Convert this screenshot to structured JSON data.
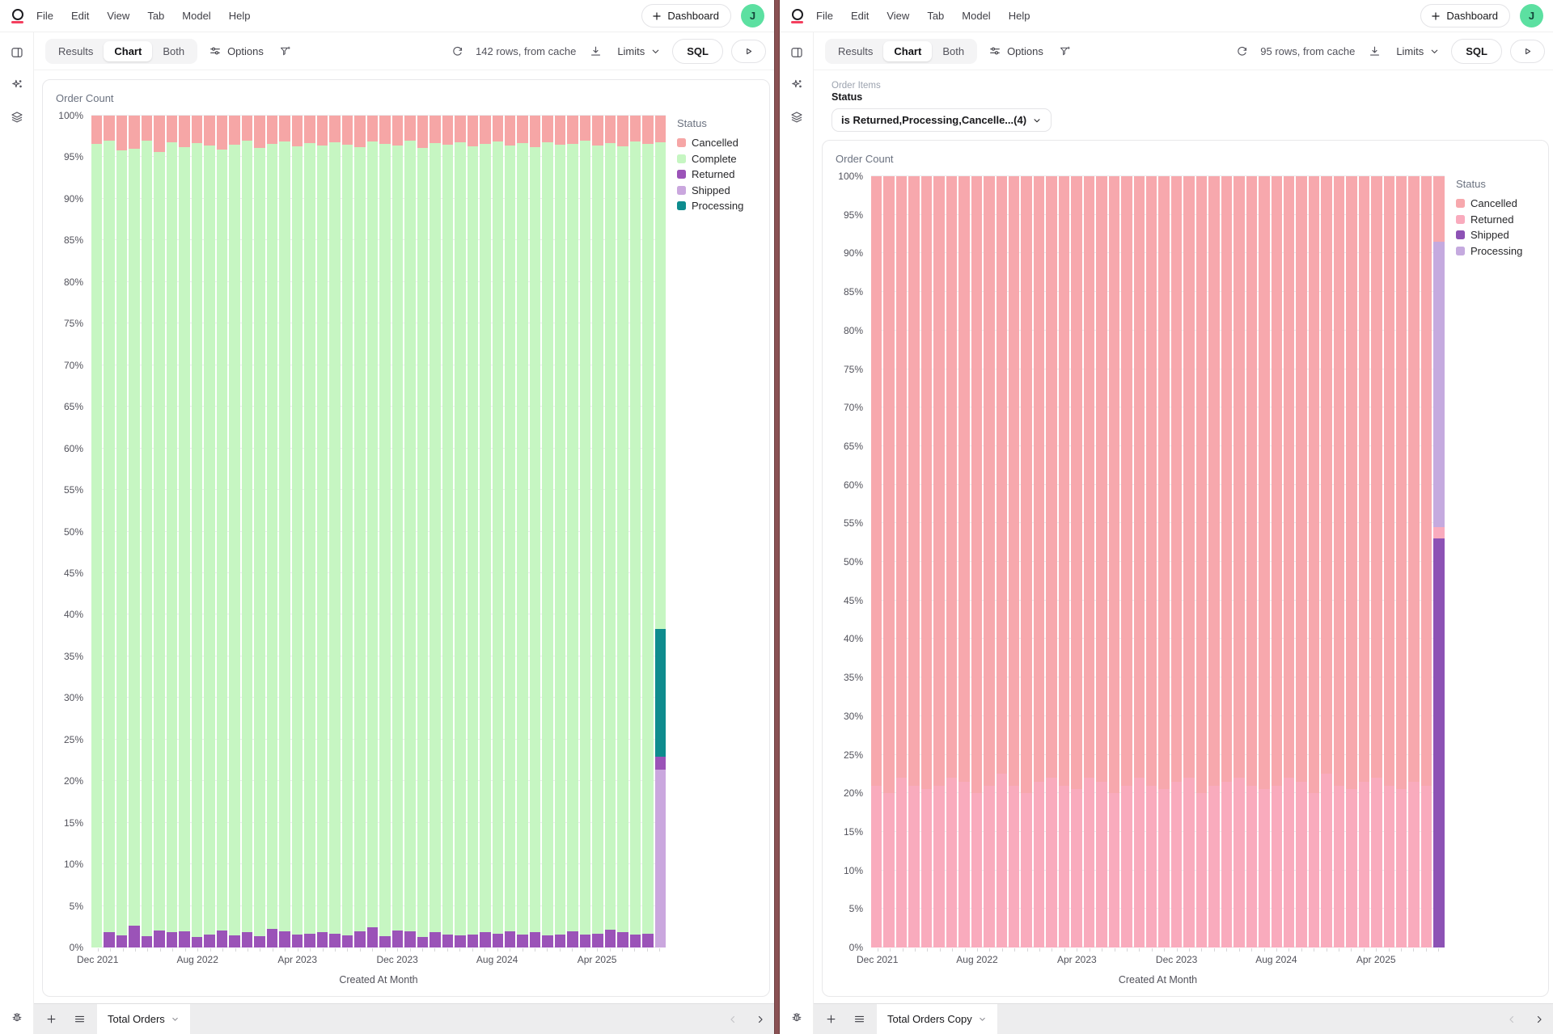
{
  "app": {
    "divider_color": "#8a5153",
    "panes": [
      {
        "menu": [
          "File",
          "Edit",
          "View",
          "Tab",
          "Model",
          "Help"
        ],
        "dashboard_label": "Dashboard",
        "avatar_initial": "J",
        "view_tabs": [
          "Results",
          "Chart",
          "Both"
        ],
        "active_view_tab": "Chart",
        "options_label": "Options",
        "rows_status": "142 rows, from cache",
        "limits_label": "Limits",
        "sql_label": "SQL",
        "bottom_tab": "Total Orders"
      },
      {
        "menu": [
          "File",
          "Edit",
          "View",
          "Tab",
          "Model",
          "Help"
        ],
        "dashboard_label": "Dashboard",
        "avatar_initial": "J",
        "view_tabs": [
          "Results",
          "Chart",
          "Both"
        ],
        "active_view_tab": "Chart",
        "options_label": "Options",
        "rows_status": "95 rows, from cache",
        "limits_label": "Limits",
        "sql_label": "SQL",
        "bottom_tab": "Total Orders Copy",
        "filter": {
          "table": "Order Items",
          "column": "Status",
          "value": "is Returned,Processing,Cancelle...(4)"
        }
      }
    ]
  },
  "chart_data": [
    {
      "type": "bar",
      "variant": "stacked-percent",
      "title": "Order Count",
      "xlabel": "Created At Month",
      "ylim": [
        0,
        100
      ],
      "y_tick_step": 5,
      "y_tick_suffix": "%",
      "n_bars": 46,
      "grid": true,
      "x_tick_labels": [
        {
          "i": 0,
          "label": "Dec 2021"
        },
        {
          "i": 8,
          "label": "Aug 2022"
        },
        {
          "i": 16,
          "label": "Apr 2023"
        },
        {
          "i": 24,
          "label": "Dec 2023"
        },
        {
          "i": 32,
          "label": "Aug 2024"
        },
        {
          "i": 40,
          "label": "Apr 2025"
        }
      ],
      "stack_order": [
        "Shipped",
        "Returned",
        "Processing",
        "Complete",
        "Cancelled"
      ],
      "legend": {
        "title": "Status",
        "position": "right",
        "entries": [
          {
            "label": "Cancelled",
            "color": "#f6a6a6"
          },
          {
            "label": "Complete",
            "color": "#c6f6c2"
          },
          {
            "label": "Returned",
            "color": "#9b53b8"
          },
          {
            "label": "Shipped",
            "color": "#caa7de"
          },
          {
            "label": "Processing",
            "color": "#0e8c8e"
          }
        ]
      },
      "series": {
        "Cancelled": [
          3.4,
          3.0,
          4.2,
          4.0,
          3.0,
          4.4,
          3.2,
          3.8,
          3.3,
          3.6,
          4.1,
          3.5,
          3.0,
          3.9,
          3.4,
          3.1,
          3.7,
          3.3,
          3.6,
          3.2,
          3.5,
          3.8,
          3.1,
          3.4,
          3.6,
          3.0,
          3.9,
          3.3,
          3.5,
          3.2,
          3.7,
          3.4,
          3.1,
          3.6,
          3.3,
          3.8,
          3.2,
          3.5,
          3.4,
          3.0,
          3.6,
          3.3,
          3.7,
          3.1,
          3.4,
          3.2
        ],
        "Complete": [
          96.6,
          95.2,
          94.3,
          93.4,
          95.6,
          93.6,
          95.0,
          94.3,
          95.4,
          94.8,
          93.9,
          95.0,
          95.2,
          94.7,
          94.4,
          95.0,
          94.7,
          95.0,
          94.6,
          95.1,
          95.0,
          94.3,
          94.5,
          95.2,
          94.4,
          95.1,
          94.8,
          94.9,
          94.9,
          95.3,
          94.7,
          94.8,
          95.2,
          94.5,
          95.1,
          94.4,
          95.3,
          94.9,
          94.7,
          95.4,
          94.7,
          94.6,
          94.5,
          95.3,
          94.9,
          58.5
        ],
        "Returned": [
          0,
          1.8,
          1.5,
          2.6,
          1.4,
          2.0,
          1.8,
          1.9,
          1.3,
          1.6,
          2.0,
          1.5,
          1.8,
          1.4,
          2.2,
          1.9,
          1.6,
          1.7,
          1.8,
          1.7,
          1.5,
          1.9,
          2.4,
          1.4,
          2.0,
          1.9,
          1.3,
          1.8,
          1.6,
          1.5,
          1.6,
          1.8,
          1.7,
          1.9,
          1.6,
          1.8,
          1.5,
          1.6,
          1.9,
          1.6,
          1.7,
          2.1,
          1.8,
          1.6,
          1.7,
          1.5
        ],
        "Shipped": [
          0,
          0,
          0,
          0,
          0,
          0,
          0,
          0,
          0,
          0,
          0,
          0,
          0,
          0,
          0,
          0,
          0,
          0,
          0,
          0,
          0,
          0,
          0,
          0,
          0,
          0,
          0,
          0,
          0,
          0,
          0,
          0,
          0,
          0,
          0,
          0,
          0,
          0,
          0,
          0,
          0,
          0,
          0,
          0,
          0,
          21.4
        ],
        "Processing": [
          0,
          0,
          0,
          0,
          0,
          0,
          0,
          0,
          0,
          0,
          0,
          0,
          0,
          0,
          0,
          0,
          0,
          0,
          0,
          0,
          0,
          0,
          0,
          0,
          0,
          0,
          0,
          0,
          0,
          0,
          0,
          0,
          0,
          0,
          0,
          0,
          0,
          0,
          0,
          0,
          0,
          0,
          0,
          0,
          0,
          15.4
        ]
      }
    },
    {
      "type": "bar",
      "variant": "stacked-percent",
      "title": "Order Count",
      "xlabel": "Created At Month",
      "ylim": [
        0,
        100
      ],
      "y_tick_step": 5,
      "y_tick_suffix": "%",
      "n_bars": 46,
      "grid": true,
      "x_tick_labels": [
        {
          "i": 0,
          "label": "Dec 2021"
        },
        {
          "i": 8,
          "label": "Aug 2022"
        },
        {
          "i": 16,
          "label": "Apr 2023"
        },
        {
          "i": 24,
          "label": "Dec 2023"
        },
        {
          "i": 32,
          "label": "Aug 2024"
        },
        {
          "i": 40,
          "label": "Apr 2025"
        }
      ],
      "stack_order": [
        "Shipped",
        "Returned",
        "Processing",
        "Cancelled"
      ],
      "legend": {
        "title": "Status",
        "position": "right",
        "entries": [
          {
            "label": "Cancelled",
            "color": "#f7a8ad"
          },
          {
            "label": "Returned",
            "color": "#f9abbd"
          },
          {
            "label": "Shipped",
            "color": "#8d52b5"
          },
          {
            "label": "Processing",
            "color": "#c5aadf"
          }
        ]
      },
      "series": {
        "Cancelled": [
          79,
          80,
          78,
          79,
          79.5,
          79,
          78,
          78.5,
          80,
          79,
          77.5,
          79,
          80,
          78.5,
          78,
          79,
          79.5,
          78,
          78.5,
          80,
          79,
          78,
          79,
          79.5,
          78.5,
          78,
          80,
          79,
          78.5,
          78,
          79,
          79.5,
          79,
          78,
          78.5,
          80,
          77.5,
          79,
          79.5,
          78.5,
          78,
          79,
          79.5,
          78.5,
          79,
          8.5
        ],
        "Returned": [
          21,
          20,
          22,
          21,
          20.5,
          21,
          22,
          21.5,
          20,
          21,
          22.5,
          21,
          20,
          21.5,
          22,
          21,
          20.5,
          22,
          21.5,
          20,
          21,
          22,
          21,
          20.5,
          21.5,
          22,
          20,
          21,
          21.5,
          22,
          21,
          20.5,
          21,
          22,
          21.5,
          20,
          22.5,
          21,
          20.5,
          21.5,
          22,
          21,
          20.5,
          21.5,
          21,
          1.5
        ],
        "Shipped": [
          0,
          0,
          0,
          0,
          0,
          0,
          0,
          0,
          0,
          0,
          0,
          0,
          0,
          0,
          0,
          0,
          0,
          0,
          0,
          0,
          0,
          0,
          0,
          0,
          0,
          0,
          0,
          0,
          0,
          0,
          0,
          0,
          0,
          0,
          0,
          0,
          0,
          0,
          0,
          0,
          0,
          0,
          0,
          0,
          0,
          53
        ],
        "Processing": [
          0,
          0,
          0,
          0,
          0,
          0,
          0,
          0,
          0,
          0,
          0,
          0,
          0,
          0,
          0,
          0,
          0,
          0,
          0,
          0,
          0,
          0,
          0,
          0,
          0,
          0,
          0,
          0,
          0,
          0,
          0,
          0,
          0,
          0,
          0,
          0,
          0,
          0,
          0,
          0,
          0,
          0,
          0,
          0,
          0,
          37
        ]
      }
    }
  ]
}
